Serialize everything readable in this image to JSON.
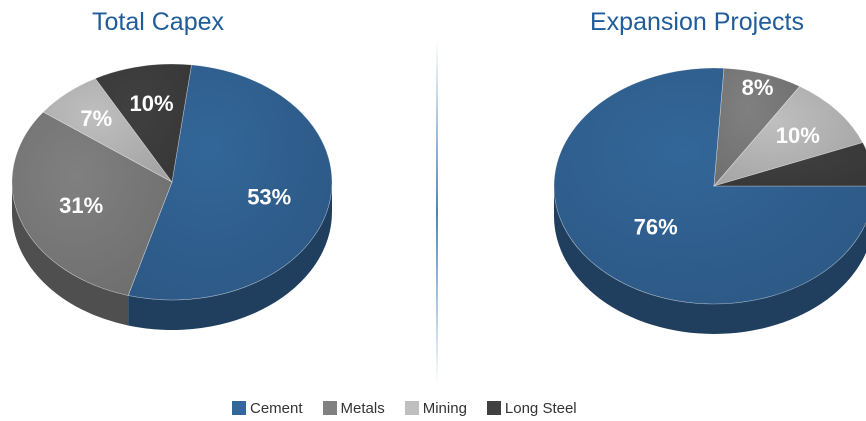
{
  "chart_data": [
    {
      "type": "pie",
      "title": "Total Capex",
      "categories": [
        "Cement",
        "Metals",
        "Mining",
        "Long Steel"
      ],
      "values": [
        53,
        31,
        7,
        10
      ],
      "labels": [
        "53%",
        "31%",
        "7%",
        "10%"
      ]
    },
    {
      "type": "pie",
      "title": "Expansion Projects",
      "categories": [
        "Cement",
        "Metals",
        "Mining",
        "Long Steel"
      ],
      "values": [
        76,
        8,
        10,
        6
      ],
      "labels": [
        "76%",
        "8%",
        "10%",
        ""
      ]
    }
  ],
  "legend": {
    "placement": "bottom",
    "items": [
      {
        "label": "Cement",
        "color": "#336699"
      },
      {
        "label": "Metals",
        "color": "#808080"
      },
      {
        "label": "Mining",
        "color": "#BFBFBF"
      },
      {
        "label": "Long Steel",
        "color": "#404040"
      }
    ]
  }
}
